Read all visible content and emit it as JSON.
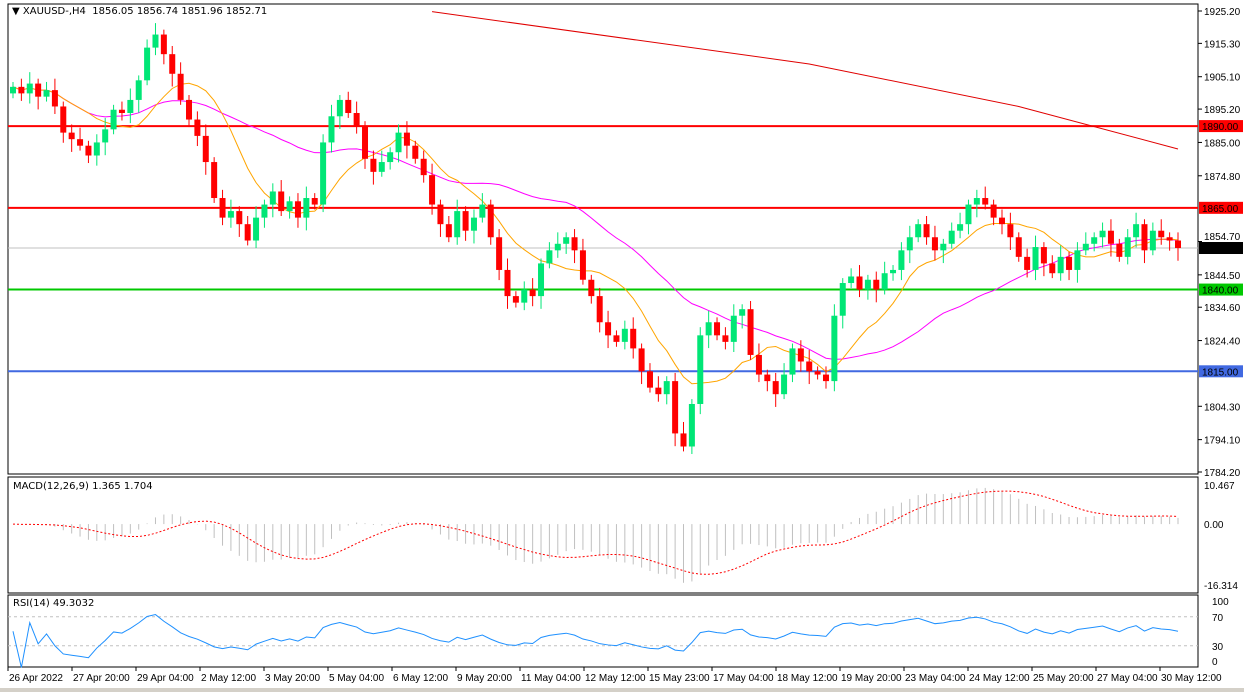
{
  "header": {
    "symbol": "XAUUSD-,H4",
    "ohlc": "1856.05 1856.74 1851.96 1852.71"
  },
  "macd_label": "MACD(12,26,9) 1.365 1.704",
  "rsi_label": "RSI(14) 49.3032",
  "colors": {
    "bull": "#00e676",
    "bear": "#ff0000",
    "ma_fast": "#ffa500",
    "ma_mid": "#ff00ff",
    "ma_slow": "#e00000",
    "macd_hist": "#c0c0c0",
    "macd_signal": "#ff0000",
    "rsi": "#1e90ff"
  },
  "chart_data": [
    {
      "type": "candlestick",
      "title": "XAUUSD-,H4",
      "ylim": [
        1784.2,
        1925.2
      ],
      "y_ticks": [
        "1925.20",
        "1915.30",
        "1905.10",
        "1895.20",
        "1885.00",
        "1874.80",
        "1854.70",
        "1844.50",
        "1834.60",
        "1824.40",
        "1804.30",
        "1794.10",
        "1784.20"
      ],
      "x_ticks": [
        "26 Apr 2022",
        "27 Apr 20:00",
        "29 Apr 04:00",
        "2 May 12:00",
        "3 May 20:00",
        "5 May 04:00",
        "6 May 12:00",
        "9 May 20:00",
        "11 May 04:00",
        "12 May 12:00",
        "15 May 23:00",
        "17 May 04:00",
        "18 May 12:00",
        "19 May 20:00",
        "23 May 04:00",
        "24 May 12:00",
        "25 May 20:00",
        "27 May 04:00",
        "30 May 12:00"
      ],
      "first_open": 1900,
      "closes": [
        1902,
        1900,
        1903,
        1899,
        1901,
        1896,
        1888,
        1886,
        1884,
        1881,
        1885,
        1889,
        1895,
        1894,
        1898,
        1904,
        1914,
        1918,
        1912,
        1906,
        1898,
        1892,
        1887,
        1879,
        1868,
        1862,
        1864,
        1860,
        1855,
        1862,
        1866,
        1870,
        1864,
        1867,
        1862,
        1868,
        1866,
        1885,
        1893,
        1898,
        1894,
        1890,
        1880,
        1876,
        1879,
        1882,
        1888,
        1884,
        1880,
        1875,
        1866,
        1860,
        1856,
        1864,
        1858,
        1862,
        1866,
        1856,
        1846,
        1838,
        1836,
        1840,
        1838,
        1848,
        1852,
        1854,
        1856,
        1852,
        1843,
        1838,
        1830,
        1826,
        1824,
        1828,
        1822,
        1815,
        1810,
        1808,
        1812,
        1796,
        1792,
        1805,
        1826,
        1830,
        1826,
        1824,
        1832,
        1834,
        1820,
        1814,
        1812,
        1808,
        1814,
        1822,
        1818,
        1815,
        1814,
        1812,
        1832,
        1842,
        1844,
        1840,
        1843,
        1840,
        1845,
        1846,
        1852,
        1856,
        1860,
        1856,
        1852,
        1854,
        1858,
        1860,
        1866,
        1868,
        1866,
        1862,
        1860,
        1856,
        1850,
        1846,
        1853,
        1848,
        1845,
        1850,
        1846,
        1852,
        1854,
        1856,
        1858,
        1854,
        1850,
        1856,
        1860,
        1852,
        1858,
        1856,
        1855,
        1852.71
      ],
      "slow_ma": {
        "bars": [
          50,
          95,
          120,
          139
        ],
        "values": [
          1925,
          1909,
          1896,
          1883
        ]
      },
      "levels": [
        {
          "label": "1890.00",
          "value": 1890,
          "color": "#ff0000"
        },
        {
          "label": "1865.00",
          "value": 1865,
          "color": "#ff0000"
        },
        {
          "label": "1840.00",
          "value": 1840,
          "color": "#00c800"
        },
        {
          "label": "1815.00",
          "value": 1815,
          "color": "#4169e1"
        }
      ],
      "current_price": {
        "label": "1852.71",
        "value": 1852.71
      }
    },
    {
      "type": "bar",
      "title": "MACD(12,26,9) 1.365 1.704",
      "ylim": [
        -16.314,
        10.467
      ],
      "y_ticks": [
        "10.467",
        "0.00",
        "-16.314"
      ]
    },
    {
      "type": "line",
      "title": "RSI(14) 49.3032",
      "ylim": [
        0,
        100
      ],
      "y_ticks": [
        "100",
        "70",
        "30",
        "0"
      ],
      "levels": [
        70,
        30
      ]
    }
  ]
}
